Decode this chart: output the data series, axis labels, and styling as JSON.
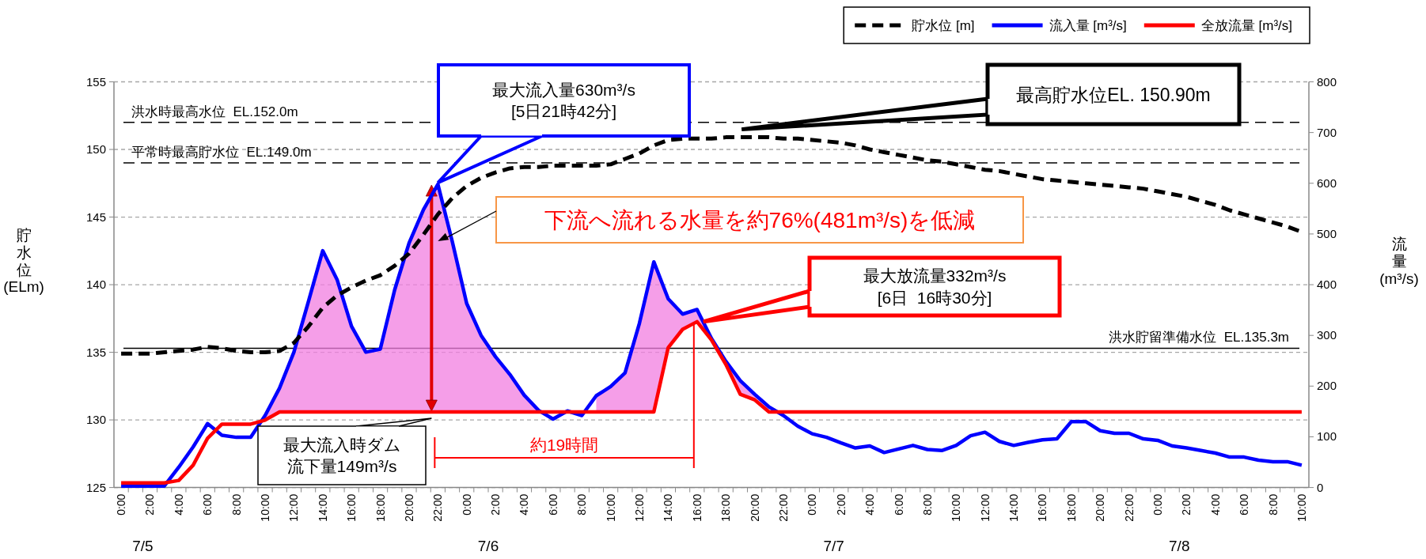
{
  "chart_data": {
    "type": "line",
    "categories": [
      "0:00",
      null,
      "2:00",
      null,
      "4:00",
      null,
      "6:00",
      null,
      "8:00",
      null,
      "10:00",
      null,
      "12:00",
      null,
      "14:00",
      null,
      "16:00",
      null,
      "18:00",
      null,
      "20:00",
      null,
      "22:00",
      null,
      "0:00",
      null,
      "2:00",
      null,
      "4:00",
      null,
      "6:00",
      null,
      "8:00",
      null,
      "10:00",
      null,
      "12:00",
      null,
      "14:00",
      null,
      "16:00",
      null,
      "18:00",
      null,
      "20:00",
      null,
      "22:00",
      null,
      "0:00",
      null,
      "2:00",
      null,
      "4:00",
      null,
      "6:00",
      null,
      "8:00",
      null,
      "10:00",
      null,
      "12:00",
      null,
      "14:00",
      null,
      "16:00",
      null,
      "18:00",
      null,
      "20:00",
      null,
      "22:00",
      null,
      "0:00",
      null,
      "2:00",
      null,
      "4:00",
      null,
      "6:00",
      null,
      "8:00",
      null,
      "10:00"
    ],
    "series": [
      {
        "name": "流入量 [m³/s]",
        "color": "#0000ff",
        "line_style": "solid",
        "axis": "y2",
        "values": [
          3,
          3,
          3,
          3,
          40,
          80,
          126,
          103,
          99,
          99,
          142,
          196,
          267,
          366,
          467,
          410,
          318,
          267,
          273,
          390,
          482,
          548,
          598,
          485,
          363,
          300,
          258,
          223,
          182,
          152,
          135,
          151,
          142,
          181,
          199,
          226,
          324,
          445,
          372,
          342,
          351,
          294,
          249,
          211,
          184,
          159,
          142,
          121,
          106,
          99,
          88,
          78,
          82,
          69,
          76,
          83,
          75,
          73,
          83,
          102,
          109,
          91,
          83,
          89,
          94,
          96,
          130,
          130,
          112,
          107,
          107,
          96,
          93,
          82,
          78,
          73,
          68,
          60,
          60,
          54,
          51,
          51,
          44
        ],
        "lower": [
          null,
          null,
          null,
          null,
          null,
          null,
          null,
          null,
          null,
          null,
          133,
          149,
          149,
          149,
          149,
          149,
          149,
          149,
          149,
          149,
          149,
          149,
          149,
          149,
          149,
          149,
          149,
          149,
          149,
          149,
          null,
          null,
          null,
          149,
          149,
          149,
          149,
          149,
          276,
          312,
          327,
          291,
          243,
          184,
          173,
          149,
          null,
          null,
          null,
          null,
          null,
          null,
          null,
          null,
          null,
          null,
          null,
          null,
          null,
          null,
          null,
          null,
          null,
          null,
          null,
          null,
          null,
          null,
          null,
          null,
          null,
          null,
          null,
          null,
          null,
          null,
          null,
          null,
          null,
          null,
          null,
          null,
          null
        ],
        "upper": [
          null,
          null,
          null,
          null,
          null,
          null,
          null,
          null,
          null,
          null,
          142,
          196,
          267,
          366,
          467,
          410,
          318,
          267,
          273,
          390,
          482,
          548,
          598,
          485,
          363,
          300,
          258,
          223,
          182,
          152,
          null,
          null,
          null,
          181,
          199,
          226,
          324,
          445,
          372,
          342,
          351,
          294,
          249,
          211,
          184,
          159,
          null,
          null,
          null,
          null,
          null,
          null,
          null,
          null,
          null,
          null,
          null,
          null,
          null,
          null,
          null,
          null,
          null,
          null,
          null,
          null,
          null,
          null,
          null,
          null,
          null,
          null,
          null,
          null,
          null,
          null,
          null,
          null,
          null,
          null,
          null,
          null,
          null
        ]
      },
      {
        "name": "全放流量 [m³/s]",
        "color": "#ff0000",
        "line_style": "solid",
        "axis": "y2",
        "values": [
          9,
          9,
          9,
          9,
          14,
          44,
          97,
          125,
          125,
          125,
          133,
          149,
          149,
          149,
          149,
          149,
          149,
          149,
          149,
          149,
          149,
          149,
          149,
          149,
          149,
          149,
          149,
          149,
          149,
          149,
          149,
          149,
          149,
          149,
          149,
          149,
          149,
          149,
          276,
          312,
          327,
          291,
          243,
          184,
          173,
          149,
          149,
          149,
          149,
          149,
          149,
          149,
          149,
          149,
          149,
          149,
          149,
          149,
          149,
          149,
          149,
          149,
          149,
          149,
          149,
          149,
          149,
          149,
          149,
          149,
          149,
          149,
          149,
          149,
          149,
          149,
          149,
          149,
          149,
          149,
          149,
          149,
          149
        ]
      },
      {
        "name": "貯水位 [m]",
        "color": "#000000",
        "line_style": "dashed",
        "values": [
          134.9,
          134.9,
          134.9,
          135.0,
          135.1,
          135.2,
          135.4,
          135.3,
          135.1,
          135.0,
          135.0,
          135.1,
          135.7,
          136.9,
          138.3,
          139.2,
          139.8,
          140.3,
          140.7,
          141.4,
          142.3,
          143.7,
          145.2,
          146.4,
          147.3,
          147.9,
          148.3,
          148.6,
          148.7,
          148.7,
          148.8,
          148.8,
          148.8,
          148.8,
          148.9,
          149.3,
          149.7,
          150.3,
          150.7,
          150.8,
          150.8,
          150.8,
          150.9,
          150.9,
          150.9,
          150.9,
          150.8,
          150.8,
          150.7,
          150.6,
          150.5,
          150.3,
          150.0,
          149.8,
          149.6,
          149.4,
          149.2,
          149.1,
          148.9,
          148.7,
          148.5,
          148.4,
          148.2,
          148.0,
          147.8,
          147.7,
          147.6,
          147.5,
          147.4,
          147.3,
          147.2,
          147.1,
          146.9,
          146.7,
          146.5,
          146.2,
          145.9,
          145.5,
          145.2,
          144.9,
          144.6,
          144.3,
          143.9
        ]
      }
    ],
    "ylim": [
      125,
      155
    ],
    "yticks": [
      125,
      130,
      135,
      140,
      145,
      150,
      155
    ],
    "y2lim": [
      0,
      800
    ],
    "y2ticks": [
      0,
      100,
      200,
      300,
      400,
      500,
      600,
      700,
      800
    ],
    "ylabel": "貯水位(ELm)",
    "y2label": "流量(m³/s)",
    "grid": "y",
    "legend": "top right",
    "ref_lines": [
      {
        "axis": "y",
        "value": 152.0,
        "label": "洪水時最高水位  EL.152.0m",
        "color": "#000000",
        "line_style": "dashed"
      },
      {
        "axis": "y",
        "value": 149.0,
        "label": "平常時最高貯水位  EL.149.0m",
        "color": "#000000",
        "line_style": "dashed"
      },
      {
        "axis": "y",
        "value": 135.3,
        "label": "洪水貯留準備水位  EL.135.3m",
        "color": "#000000",
        "line_style": "solid"
      }
    ],
    "annotations": [
      "最大流入量630m³/s\n[5日21時42分]",
      "最高貯水位EL. 150.90m",
      "下流へ流れる水量を約76%(481m³/s)を低減",
      "最大放流量332m³/s\n[6日  16時30分]",
      "最大流入時ダム流下量149m³/s",
      "約19時間",
      "7/5",
      "7/6",
      "7/7",
      "7/8"
    ]
  }
}
